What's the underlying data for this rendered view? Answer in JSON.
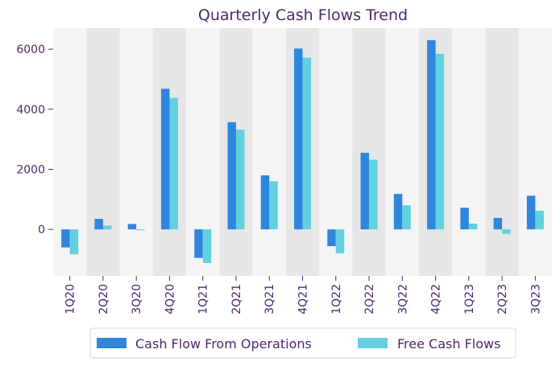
{
  "chart_data": {
    "type": "bar",
    "title": "Quarterly Cash Flows Trend",
    "categories": [
      "1Q20",
      "2Q20",
      "3Q20",
      "4Q20",
      "1Q21",
      "2Q21",
      "3Q21",
      "4Q21",
      "1Q22",
      "2Q22",
      "3Q22",
      "4Q22",
      "1Q23",
      "2Q23",
      "3Q23"
    ],
    "series": [
      {
        "name": "Cash Flow From Operations",
        "color": "#2f86dd",
        "values": [
          -600,
          350,
          180,
          4680,
          -950,
          3570,
          1800,
          6020,
          -560,
          2550,
          1180,
          6300,
          720,
          380,
          1120
        ]
      },
      {
        "name": "Free Cash Flows",
        "color": "#62d0de",
        "values": [
          -830,
          130,
          -30,
          4380,
          -1120,
          3320,
          1600,
          5720,
          -800,
          2320,
          800,
          5850,
          190,
          -150,
          620
        ]
      }
    ],
    "ylim": [
      -1550,
      6700
    ],
    "yticks": [
      0,
      2000,
      4000,
      6000
    ],
    "xlabel": "",
    "ylabel": "",
    "legend_position": "bottom-center",
    "band_colors": [
      "#f4f4f5",
      "#e6e6e7"
    ],
    "grid": false
  }
}
